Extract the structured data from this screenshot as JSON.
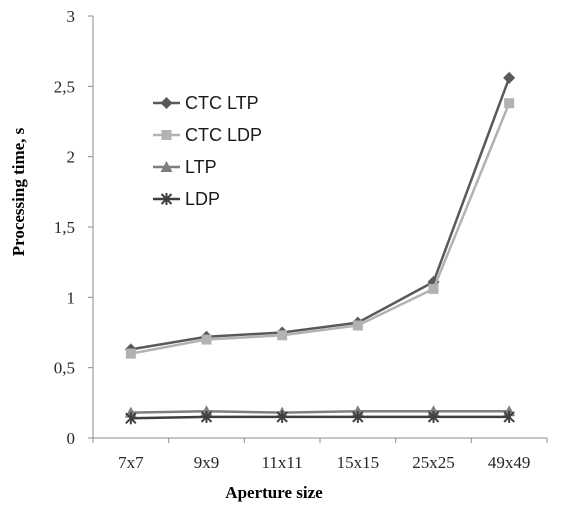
{
  "chart_data": {
    "type": "line",
    "title": "",
    "xlabel": "Aperture size",
    "ylabel": "Processing time, s",
    "categories": [
      "7x7",
      "9x9",
      "11x11",
      "15x15",
      "25x25",
      "49x49"
    ],
    "ylim": [
      0,
      3
    ],
    "yticks": [
      {
        "value": 0,
        "label": "0"
      },
      {
        "value": 0.5,
        "label": "0,5"
      },
      {
        "value": 1,
        "label": "1"
      },
      {
        "value": 1.5,
        "label": "1,5"
      },
      {
        "value": 2,
        "label": "2"
      },
      {
        "value": 2.5,
        "label": "2,5"
      },
      {
        "value": 3,
        "label": "3"
      }
    ],
    "grid": false,
    "legend_position": "upper-left inside plot",
    "series": [
      {
        "name": "CTC LTP",
        "marker": "diamond",
        "color": "#595959",
        "values": [
          0.63,
          0.72,
          0.75,
          0.82,
          1.11,
          2.56
        ]
      },
      {
        "name": "CTC LDP",
        "marker": "square",
        "color": "#b2b2b2",
        "values": [
          0.6,
          0.7,
          0.73,
          0.8,
          1.06,
          2.38
        ]
      },
      {
        "name": "LTP",
        "marker": "triangle",
        "color": "#7f7f7f",
        "values": [
          0.18,
          0.19,
          0.18,
          0.19,
          0.19,
          0.19
        ]
      },
      {
        "name": "LDP",
        "marker": "x",
        "color": "#3f3f3f",
        "values": [
          0.14,
          0.15,
          0.15,
          0.15,
          0.15,
          0.15
        ]
      }
    ]
  }
}
